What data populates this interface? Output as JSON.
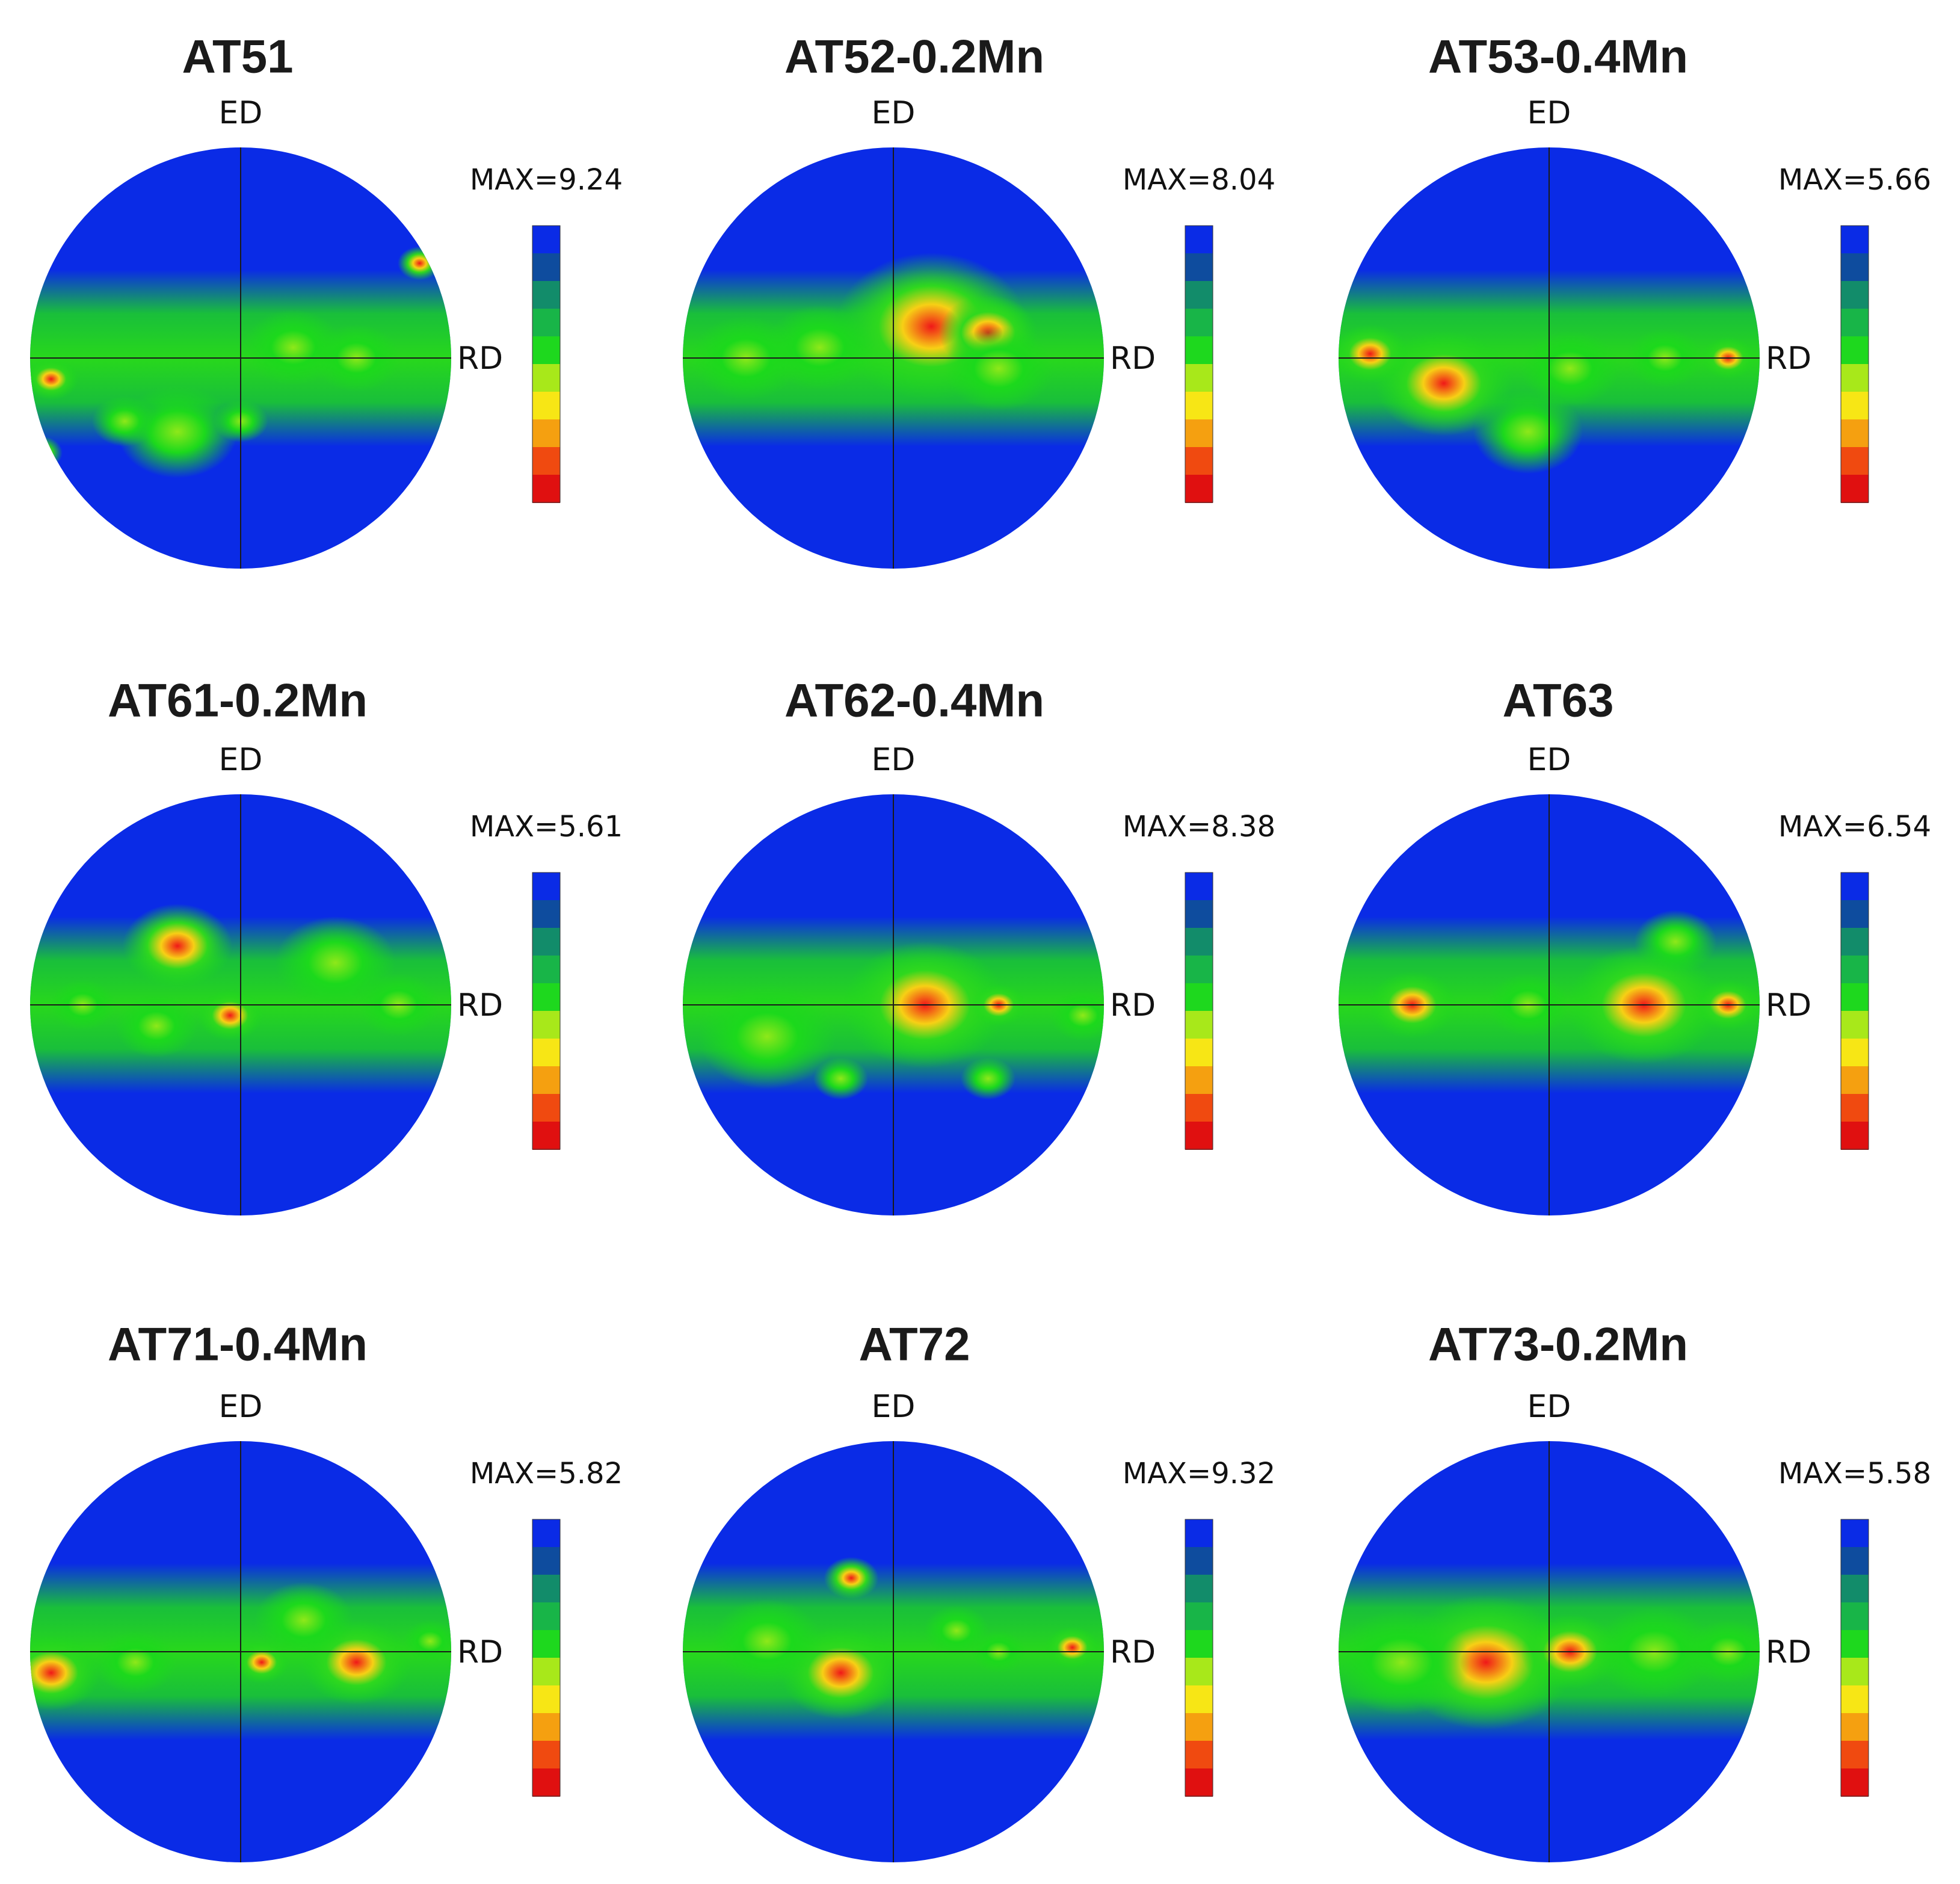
{
  "figure": {
    "axis_labels": {
      "top": "ED",
      "right": "RD"
    },
    "colors": {
      "background": "#0a2be6",
      "low": "#0a2be6",
      "mid": "#1cd91c",
      "high": "#f01818",
      "peak": "#ffee00",
      "contour": "#0b3d1e"
    },
    "colorbar": [
      "#e01010",
      "#f04a10",
      "#f5a010",
      "#f7e615",
      "#a8e81a",
      "#1ed81e",
      "#18b548",
      "#128c6a",
      "#0e4c9e",
      "#0a2be6"
    ],
    "panels": [
      {
        "title": "AT51",
        "max_label": "MAX=9.24"
      },
      {
        "title": "AT52-0.2Mn",
        "max_label": "MAX=8.04"
      },
      {
        "title": "AT53-0.4Mn",
        "max_label": "MAX=5.66"
      },
      {
        "title": "AT61-0.2Mn",
        "max_label": "MAX=5.61"
      },
      {
        "title": "AT62-0.4Mn",
        "max_label": "MAX=8.38"
      },
      {
        "title": "AT63",
        "max_label": "MAX=6.54"
      },
      {
        "title": "AT71-0.4Mn",
        "max_label": "MAX=5.82"
      },
      {
        "title": "AT72",
        "max_label": "MAX=9.32"
      },
      {
        "title": "AT73-0.2Mn",
        "max_label": "MAX=5.58"
      }
    ]
  }
}
